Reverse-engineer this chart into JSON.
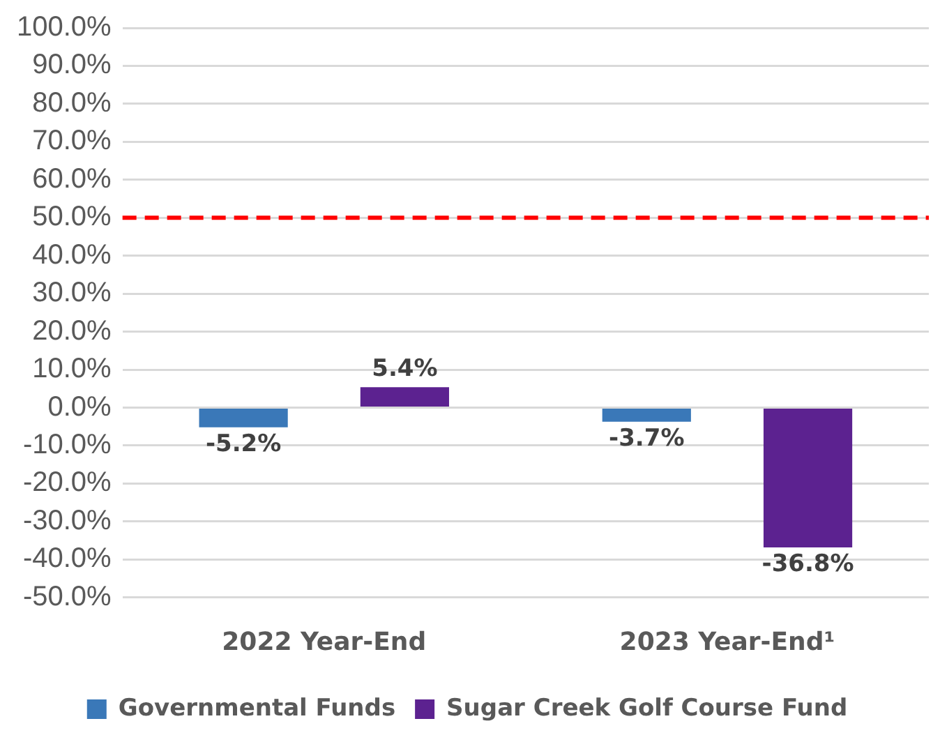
{
  "chart_data": {
    "type": "bar",
    "categories": [
      "2022 Year-End",
      "2023 Year-End¹"
    ],
    "series": [
      {
        "name": "Governmental Funds",
        "color": "#3a78b8",
        "values": [
          -5.2,
          -3.7
        ],
        "value_labels": [
          "-5.2%",
          "-3.7%"
        ]
      },
      {
        "name": "Sugar Creek Golf Course Fund",
        "color": "#5c2290",
        "values": [
          5.4,
          -36.8
        ],
        "value_labels": [
          "5.4%",
          "-36.8%"
        ]
      }
    ],
    "ylim": [
      -50,
      100
    ],
    "yticks": [
      {
        "value": -50,
        "label": "-50.0%"
      },
      {
        "value": -40,
        "label": "-40.0%"
      },
      {
        "value": -30,
        "label": "-30.0%"
      },
      {
        "value": -20,
        "label": "-20.0%"
      },
      {
        "value": -10,
        "label": "-10.0%"
      },
      {
        "value": 0,
        "label": "0.0%"
      },
      {
        "value": 10,
        "label": "10.0%"
      },
      {
        "value": 20,
        "label": "20.0%"
      },
      {
        "value": 30,
        "label": "30.0%"
      },
      {
        "value": 40,
        "label": "40.0%"
      },
      {
        "value": 50,
        "label": "50.0%"
      },
      {
        "value": 60,
        "label": "60.0%"
      },
      {
        "value": 70,
        "label": "70.0%"
      },
      {
        "value": 80,
        "label": "80.0%"
      },
      {
        "value": 90,
        "label": "90.0%"
      },
      {
        "value": 100,
        "label": "100.0%"
      }
    ],
    "ref_lines": [
      {
        "axis": "y",
        "value": 50,
        "color": "#ff0000",
        "line_style": "dashed"
      }
    ],
    "grid": "y",
    "legend": "bottom"
  }
}
